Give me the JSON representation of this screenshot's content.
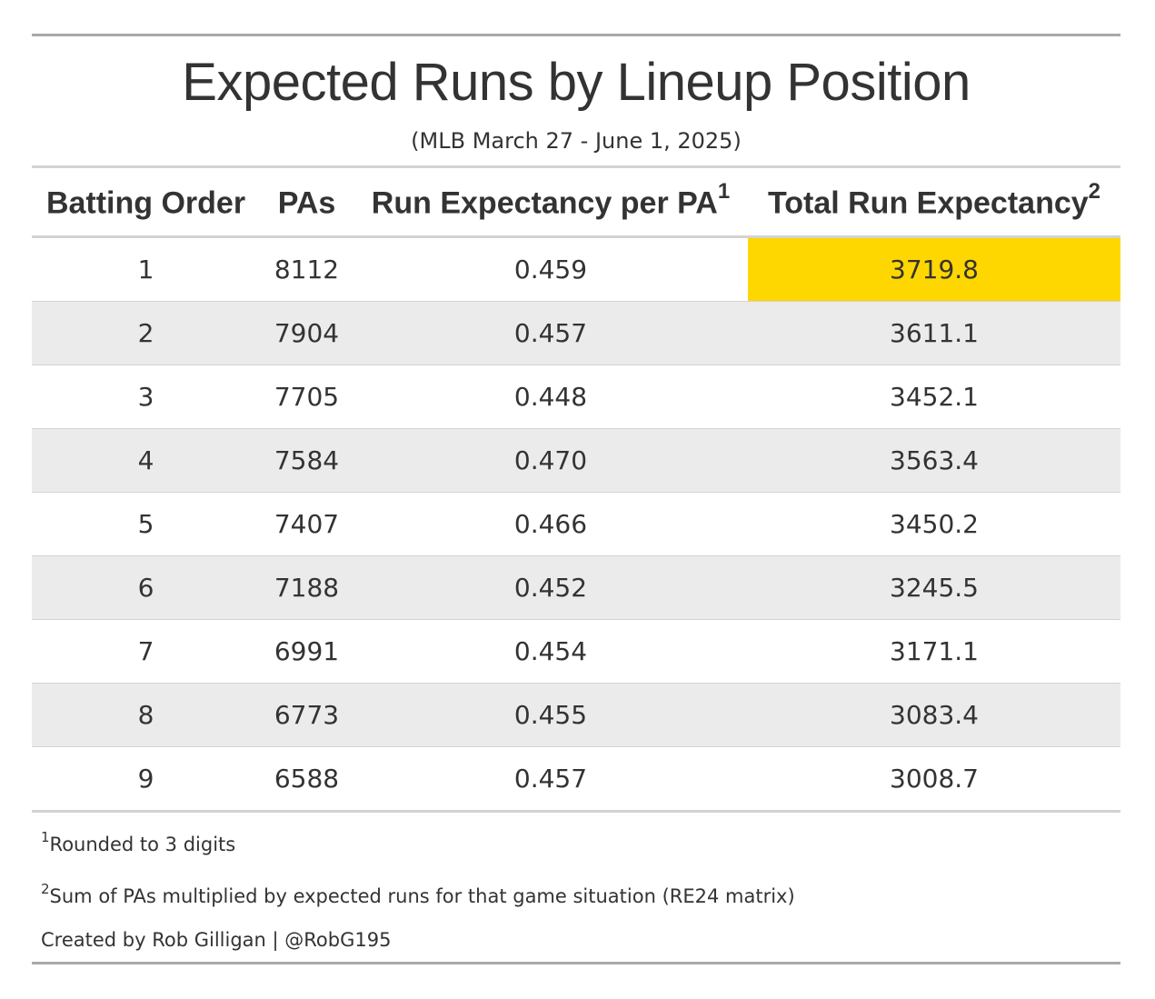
{
  "chart_data": {
    "type": "table",
    "title": "Expected Runs by Lineup Position",
    "subtitle": "(MLB March 27 - June 1, 2025)",
    "columns": [
      {
        "label": "Batting Order",
        "footnote": ""
      },
      {
        "label": "PAs",
        "footnote": ""
      },
      {
        "label": "Run Expectancy per PA",
        "footnote": "1"
      },
      {
        "label": "Total Run Expectancy",
        "footnote": "2"
      }
    ],
    "rows": [
      [
        "1",
        "8112",
        "0.459",
        "3719.8"
      ],
      [
        "2",
        "7904",
        "0.457",
        "3611.1"
      ],
      [
        "3",
        "7705",
        "0.448",
        "3452.1"
      ],
      [
        "4",
        "7584",
        "0.470",
        "3563.4"
      ],
      [
        "5",
        "7407",
        "0.466",
        "3450.2"
      ],
      [
        "6",
        "7188",
        "0.452",
        "3245.5"
      ],
      [
        "7",
        "6991",
        "0.454",
        "3171.1"
      ],
      [
        "8",
        "6773",
        "0.455",
        "3083.4"
      ],
      [
        "9",
        "6588",
        "0.457",
        "3008.7"
      ]
    ],
    "highlight": {
      "row": 0,
      "column": 3,
      "color": "#ffd700"
    },
    "footnotes": [
      {
        "marker": "1",
        "text": "Rounded to 3 digits"
      },
      {
        "marker": "2",
        "text": "Sum of PAs multiplied by expected runs for that game situation (RE24 matrix)"
      }
    ],
    "source_note": "Created by Rob Gilligan | @RobG195"
  },
  "colors": {
    "stripe": "#ebebeb",
    "highlight": "#ffd700",
    "rule_outer": "#a9a9a9",
    "rule_inner": "#d3d3d3"
  }
}
